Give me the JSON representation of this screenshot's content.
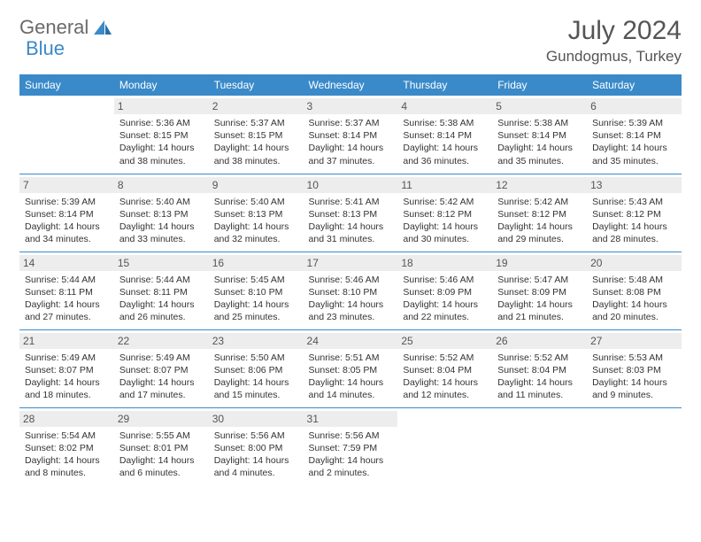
{
  "logo": {
    "word1": "General",
    "word2": "Blue"
  },
  "title": "July 2024",
  "location": "Gundogmus, Turkey",
  "colors": {
    "header_bg": "#3a8ac9",
    "header_text": "#ffffff",
    "daynum_bg": "#ededed",
    "border": "#3a8ac9",
    "body_text": "#333333",
    "title_text": "#555555"
  },
  "weekdays": [
    "Sunday",
    "Monday",
    "Tuesday",
    "Wednesday",
    "Thursday",
    "Friday",
    "Saturday"
  ],
  "layout": {
    "first_weekday_index": 1,
    "days_in_month": 31,
    "font_family": "Arial",
    "month_title_fontsize": 30,
    "location_fontsize": 17,
    "weekday_fontsize": 12,
    "daynum_fontsize": 12,
    "daytext_fontsize": 10.5
  },
  "days": [
    {
      "n": "1",
      "sunrise": "5:36 AM",
      "sunset": "8:15 PM",
      "daylight": "14 hours and 38 minutes."
    },
    {
      "n": "2",
      "sunrise": "5:37 AM",
      "sunset": "8:15 PM",
      "daylight": "14 hours and 38 minutes."
    },
    {
      "n": "3",
      "sunrise": "5:37 AM",
      "sunset": "8:14 PM",
      "daylight": "14 hours and 37 minutes."
    },
    {
      "n": "4",
      "sunrise": "5:38 AM",
      "sunset": "8:14 PM",
      "daylight": "14 hours and 36 minutes."
    },
    {
      "n": "5",
      "sunrise": "5:38 AM",
      "sunset": "8:14 PM",
      "daylight": "14 hours and 35 minutes."
    },
    {
      "n": "6",
      "sunrise": "5:39 AM",
      "sunset": "8:14 PM",
      "daylight": "14 hours and 35 minutes."
    },
    {
      "n": "7",
      "sunrise": "5:39 AM",
      "sunset": "8:14 PM",
      "daylight": "14 hours and 34 minutes."
    },
    {
      "n": "8",
      "sunrise": "5:40 AM",
      "sunset": "8:13 PM",
      "daylight": "14 hours and 33 minutes."
    },
    {
      "n": "9",
      "sunrise": "5:40 AM",
      "sunset": "8:13 PM",
      "daylight": "14 hours and 32 minutes."
    },
    {
      "n": "10",
      "sunrise": "5:41 AM",
      "sunset": "8:13 PM",
      "daylight": "14 hours and 31 minutes."
    },
    {
      "n": "11",
      "sunrise": "5:42 AM",
      "sunset": "8:12 PM",
      "daylight": "14 hours and 30 minutes."
    },
    {
      "n": "12",
      "sunrise": "5:42 AM",
      "sunset": "8:12 PM",
      "daylight": "14 hours and 29 minutes."
    },
    {
      "n": "13",
      "sunrise": "5:43 AM",
      "sunset": "8:12 PM",
      "daylight": "14 hours and 28 minutes."
    },
    {
      "n": "14",
      "sunrise": "5:44 AM",
      "sunset": "8:11 PM",
      "daylight": "14 hours and 27 minutes."
    },
    {
      "n": "15",
      "sunrise": "5:44 AM",
      "sunset": "8:11 PM",
      "daylight": "14 hours and 26 minutes."
    },
    {
      "n": "16",
      "sunrise": "5:45 AM",
      "sunset": "8:10 PM",
      "daylight": "14 hours and 25 minutes."
    },
    {
      "n": "17",
      "sunrise": "5:46 AM",
      "sunset": "8:10 PM",
      "daylight": "14 hours and 23 minutes."
    },
    {
      "n": "18",
      "sunrise": "5:46 AM",
      "sunset": "8:09 PM",
      "daylight": "14 hours and 22 minutes."
    },
    {
      "n": "19",
      "sunrise": "5:47 AM",
      "sunset": "8:09 PM",
      "daylight": "14 hours and 21 minutes."
    },
    {
      "n": "20",
      "sunrise": "5:48 AM",
      "sunset": "8:08 PM",
      "daylight": "14 hours and 20 minutes."
    },
    {
      "n": "21",
      "sunrise": "5:49 AM",
      "sunset": "8:07 PM",
      "daylight": "14 hours and 18 minutes."
    },
    {
      "n": "22",
      "sunrise": "5:49 AM",
      "sunset": "8:07 PM",
      "daylight": "14 hours and 17 minutes."
    },
    {
      "n": "23",
      "sunrise": "5:50 AM",
      "sunset": "8:06 PM",
      "daylight": "14 hours and 15 minutes."
    },
    {
      "n": "24",
      "sunrise": "5:51 AM",
      "sunset": "8:05 PM",
      "daylight": "14 hours and 14 minutes."
    },
    {
      "n": "25",
      "sunrise": "5:52 AM",
      "sunset": "8:04 PM",
      "daylight": "14 hours and 12 minutes."
    },
    {
      "n": "26",
      "sunrise": "5:52 AM",
      "sunset": "8:04 PM",
      "daylight": "14 hours and 11 minutes."
    },
    {
      "n": "27",
      "sunrise": "5:53 AM",
      "sunset": "8:03 PM",
      "daylight": "14 hours and 9 minutes."
    },
    {
      "n": "28",
      "sunrise": "5:54 AM",
      "sunset": "8:02 PM",
      "daylight": "14 hours and 8 minutes."
    },
    {
      "n": "29",
      "sunrise": "5:55 AM",
      "sunset": "8:01 PM",
      "daylight": "14 hours and 6 minutes."
    },
    {
      "n": "30",
      "sunrise": "5:56 AM",
      "sunset": "8:00 PM",
      "daylight": "14 hours and 4 minutes."
    },
    {
      "n": "31",
      "sunrise": "5:56 AM",
      "sunset": "7:59 PM",
      "daylight": "14 hours and 2 minutes."
    }
  ],
  "labels": {
    "sunrise": "Sunrise:",
    "sunset": "Sunset:",
    "daylight": "Daylight:"
  }
}
